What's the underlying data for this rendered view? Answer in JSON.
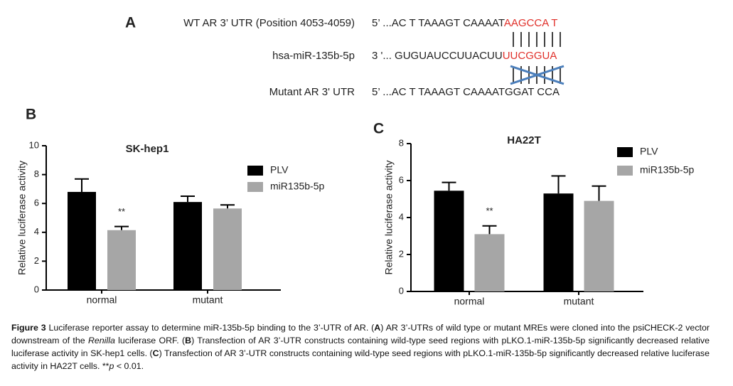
{
  "panel_a": {
    "letter": "A",
    "rows": [
      {
        "label": "WT AR 3’ UTR  (Position 4053-4059)",
        "sequence": "5’ ...AC T TAAAGT CAAAAT",
        "seed": "AAGCCA T"
      },
      {
        "label": "hsa-miR-135b-5p",
        "sequence": "3 '... GUGUAUCCUUACUU",
        "seed": "UUCGGUA"
      },
      {
        "label": "Mutant AR 3' UTR",
        "sequence": "5’ ...AC T TAAAGT CAAAATGGAT CCA"
      }
    ]
  },
  "chart_data": [
    {
      "type": "bar",
      "panel": "B",
      "title": "SK-hep1",
      "ylabel": "Relative luciferase activity",
      "categories": [
        "normal",
        "mutant"
      ],
      "series": [
        {
          "name": "PLV",
          "color": "#000000",
          "values": [
            6.8,
            6.1
          ],
          "errors": [
            0.9,
            0.4
          ]
        },
        {
          "name": "miR135b-5p",
          "color": "#a6a6a6",
          "values": [
            4.15,
            5.65
          ],
          "errors": [
            0.25,
            0.25
          ]
        }
      ],
      "annotation": "**",
      "ylim": [
        0,
        10
      ],
      "yticks": [
        0,
        2,
        4,
        6,
        8,
        10
      ],
      "grid": false
    },
    {
      "type": "bar",
      "panel": "C",
      "title": "HA22T",
      "ylabel": "Relative luciferase activity",
      "categories": [
        "normal",
        "mutant"
      ],
      "series": [
        {
          "name": "PLV",
          "color": "#000000",
          "values": [
            5.45,
            5.3
          ],
          "errors": [
            0.45,
            0.95
          ]
        },
        {
          "name": "miR135b-5p",
          "color": "#a6a6a6",
          "values": [
            3.1,
            4.9
          ],
          "errors": [
            0.45,
            0.8
          ]
        }
      ],
      "annotation": "**",
      "ylim": [
        0,
        8
      ],
      "yticks": [
        0,
        2,
        4,
        6,
        8
      ],
      "grid": false
    }
  ],
  "caption": {
    "label": "Figure 3",
    "parts": [
      " Luciferase reporter assay to determine miR-135b-5p binding to the 3’-UTR of AR. (",
      "A",
      ") AR 3’-UTRs of wild type or mutant MREs were cloned into the psiCHECK-2 vector downstream of the ",
      "Renilla",
      " luciferase ORF. (",
      "B",
      ") Transfection of AR 3’-UTR constructs containing wild-type seed regions with pLKO.1-miR-135b-5p significantly decreased relative luciferase activity in SK-hep1 cells. (",
      "C",
      ") Transfection of AR 3’-UTR constructs containing wild-type seed regions with pLKO.1-miR-135b-5p significantly decreased relative luciferase activity in HA22T cells. ",
      "**",
      "p",
      " < 0.01."
    ]
  }
}
